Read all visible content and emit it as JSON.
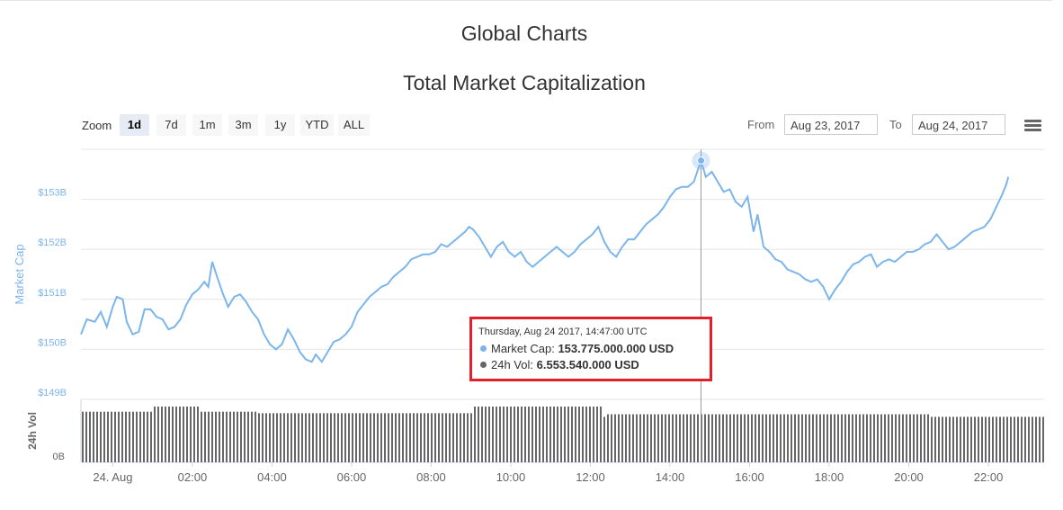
{
  "page": {
    "title": "Global Charts"
  },
  "toolbar": {
    "zoom_label": "Zoom",
    "zoom_buttons": [
      {
        "label": "1d",
        "active": true
      },
      {
        "label": "7d",
        "active": false
      },
      {
        "label": "1m",
        "active": false
      },
      {
        "label": "3m",
        "active": false
      },
      {
        "label": "1y",
        "active": false
      },
      {
        "label": "YTD",
        "active": false
      },
      {
        "label": "ALL",
        "active": false
      }
    ],
    "from_label": "From",
    "from_value": "Aug 23, 2017",
    "to_label": "To",
    "to_value": "Aug 24, 2017",
    "menu_icon": "hamburger-menu-icon"
  },
  "colors": {
    "market_cap": "#7cb5ec",
    "volume": "#666666",
    "tooltip_border": "#e0202a",
    "active_zoom": "#e6ebf5"
  },
  "tooltip": {
    "header": "Thursday, Aug 24 2017, 14:47:00 UTC",
    "market_cap_label": "Market Cap:",
    "market_cap_value": "153.775.000.000 USD",
    "volume_label": "24h Vol:",
    "volume_value": "6.553.540.000 USD"
  },
  "chart_data": {
    "type": "line",
    "title": "Total Market Capitalization",
    "y_axis": {
      "label": "Market Cap",
      "ticks": [
        "$149B",
        "$150B",
        "$151B",
        "$152B",
        "$153B"
      ],
      "range": [
        149,
        154
      ]
    },
    "volume_axis": {
      "label": "24h Vol",
      "ticks": [
        "0B"
      ]
    },
    "x_axis": {
      "ticks": [
        "24. Aug",
        "02:00",
        "04:00",
        "06:00",
        "08:00",
        "10:00",
        "12:00",
        "14:00",
        "16:00",
        "18:00",
        "20:00",
        "22:00"
      ],
      "range_hours": [
        -0.8,
        23.4
      ]
    },
    "series": [
      {
        "name": "Market Cap",
        "unit": "billion USD",
        "points": [
          [
            -0.8,
            150.3
          ],
          [
            -0.65,
            150.6
          ],
          [
            -0.45,
            150.55
          ],
          [
            -0.3,
            150.75
          ],
          [
            -0.15,
            150.45
          ],
          [
            0.0,
            150.85
          ],
          [
            0.1,
            151.05
          ],
          [
            0.25,
            151.0
          ],
          [
            0.35,
            150.55
          ],
          [
            0.5,
            150.3
          ],
          [
            0.65,
            150.35
          ],
          [
            0.8,
            150.8
          ],
          [
            0.95,
            150.8
          ],
          [
            1.1,
            150.65
          ],
          [
            1.25,
            150.6
          ],
          [
            1.4,
            150.4
          ],
          [
            1.55,
            150.45
          ],
          [
            1.7,
            150.6
          ],
          [
            1.85,
            150.9
          ],
          [
            2.0,
            151.1
          ],
          [
            2.15,
            151.2
          ],
          [
            2.3,
            151.35
          ],
          [
            2.4,
            151.25
          ],
          [
            2.5,
            151.75
          ],
          [
            2.6,
            151.5
          ],
          [
            2.75,
            151.15
          ],
          [
            2.9,
            150.85
          ],
          [
            3.05,
            151.05
          ],
          [
            3.2,
            151.1
          ],
          [
            3.35,
            150.95
          ],
          [
            3.5,
            150.75
          ],
          [
            3.65,
            150.6
          ],
          [
            3.8,
            150.3
          ],
          [
            3.95,
            150.1
          ],
          [
            4.1,
            150.0
          ],
          [
            4.25,
            150.1
          ],
          [
            4.4,
            150.4
          ],
          [
            4.55,
            150.2
          ],
          [
            4.7,
            149.95
          ],
          [
            4.85,
            149.8
          ],
          [
            5.0,
            149.75
          ],
          [
            5.1,
            149.9
          ],
          [
            5.25,
            149.75
          ],
          [
            5.4,
            149.95
          ],
          [
            5.55,
            150.15
          ],
          [
            5.7,
            150.2
          ],
          [
            5.85,
            150.3
          ],
          [
            6.0,
            150.45
          ],
          [
            6.15,
            150.75
          ],
          [
            6.3,
            150.9
          ],
          [
            6.45,
            151.05
          ],
          [
            6.6,
            151.15
          ],
          [
            6.75,
            151.25
          ],
          [
            6.9,
            151.3
          ],
          [
            7.05,
            151.45
          ],
          [
            7.2,
            151.55
          ],
          [
            7.35,
            151.65
          ],
          [
            7.5,
            151.8
          ],
          [
            7.65,
            151.85
          ],
          [
            7.8,
            151.9
          ],
          [
            7.95,
            151.9
          ],
          [
            8.1,
            151.95
          ],
          [
            8.25,
            152.1
          ],
          [
            8.4,
            152.05
          ],
          [
            8.55,
            152.15
          ],
          [
            8.7,
            152.25
          ],
          [
            8.85,
            152.35
          ],
          [
            8.95,
            152.45
          ],
          [
            9.05,
            152.4
          ],
          [
            9.2,
            152.25
          ],
          [
            9.35,
            152.05
          ],
          [
            9.5,
            151.85
          ],
          [
            9.65,
            152.05
          ],
          [
            9.8,
            152.15
          ],
          [
            9.95,
            151.95
          ],
          [
            10.1,
            151.85
          ],
          [
            10.25,
            151.95
          ],
          [
            10.4,
            151.75
          ],
          [
            10.55,
            151.65
          ],
          [
            10.7,
            151.75
          ],
          [
            10.85,
            151.85
          ],
          [
            11.0,
            151.95
          ],
          [
            11.15,
            152.05
          ],
          [
            11.3,
            151.95
          ],
          [
            11.45,
            151.85
          ],
          [
            11.6,
            151.95
          ],
          [
            11.75,
            152.1
          ],
          [
            11.9,
            152.2
          ],
          [
            12.05,
            152.3
          ],
          [
            12.2,
            152.45
          ],
          [
            12.35,
            152.15
          ],
          [
            12.5,
            151.95
          ],
          [
            12.65,
            151.85
          ],
          [
            12.8,
            152.05
          ],
          [
            12.95,
            152.2
          ],
          [
            13.1,
            152.2
          ],
          [
            13.25,
            152.35
          ],
          [
            13.4,
            152.5
          ],
          [
            13.55,
            152.6
          ],
          [
            13.7,
            152.7
          ],
          [
            13.85,
            152.85
          ],
          [
            14.0,
            153.05
          ],
          [
            14.15,
            153.2
          ],
          [
            14.3,
            153.25
          ],
          [
            14.45,
            153.25
          ],
          [
            14.6,
            153.35
          ],
          [
            14.78,
            153.775
          ],
          [
            14.9,
            153.45
          ],
          [
            15.05,
            153.55
          ],
          [
            15.2,
            153.35
          ],
          [
            15.35,
            153.15
          ],
          [
            15.5,
            153.2
          ],
          [
            15.65,
            152.95
          ],
          [
            15.8,
            152.85
          ],
          [
            15.95,
            153.05
          ],
          [
            16.1,
            152.35
          ],
          [
            16.2,
            152.7
          ],
          [
            16.35,
            152.05
          ],
          [
            16.5,
            151.95
          ],
          [
            16.65,
            151.8
          ],
          [
            16.8,
            151.75
          ],
          [
            16.95,
            151.6
          ],
          [
            17.1,
            151.55
          ],
          [
            17.25,
            151.5
          ],
          [
            17.4,
            151.4
          ],
          [
            17.55,
            151.35
          ],
          [
            17.7,
            151.4
          ],
          [
            17.85,
            151.25
          ],
          [
            18.0,
            151.0
          ],
          [
            18.15,
            151.2
          ],
          [
            18.3,
            151.35
          ],
          [
            18.45,
            151.55
          ],
          [
            18.6,
            151.7
          ],
          [
            18.75,
            151.75
          ],
          [
            18.9,
            151.85
          ],
          [
            19.05,
            151.9
          ],
          [
            19.2,
            151.65
          ],
          [
            19.35,
            151.75
          ],
          [
            19.5,
            151.8
          ],
          [
            19.65,
            151.75
          ],
          [
            19.8,
            151.85
          ],
          [
            19.95,
            151.95
          ],
          [
            20.1,
            151.95
          ],
          [
            20.25,
            152.0
          ],
          [
            20.4,
            152.1
          ],
          [
            20.55,
            152.15
          ],
          [
            20.7,
            152.3
          ],
          [
            20.85,
            152.15
          ],
          [
            21.0,
            152.0
          ],
          [
            21.15,
            152.05
          ],
          [
            21.3,
            152.15
          ],
          [
            21.45,
            152.25
          ],
          [
            21.6,
            152.35
          ],
          [
            21.75,
            152.4
          ],
          [
            21.9,
            152.45
          ],
          [
            22.05,
            152.6
          ],
          [
            22.2,
            152.85
          ],
          [
            22.35,
            153.1
          ],
          [
            22.45,
            153.3
          ],
          [
            22.5,
            153.45
          ]
        ]
      },
      {
        "name": "24h Vol",
        "unit": "billion USD",
        "segments": [
          {
            "from": -0.8,
            "to": 1.0,
            "value": 6.9
          },
          {
            "from": 1.0,
            "to": 2.2,
            "value": 7.6
          },
          {
            "from": 2.2,
            "to": 3.6,
            "value": 6.9
          },
          {
            "from": 3.6,
            "to": 9.0,
            "value": 6.7
          },
          {
            "from": 9.0,
            "to": 12.25,
            "value": 7.6
          },
          {
            "from": 12.25,
            "to": 12.35,
            "value": 6.2
          },
          {
            "from": 12.35,
            "to": 14.78,
            "value": 6.55
          },
          {
            "from": 14.78,
            "to": 20.5,
            "value": 6.55
          },
          {
            "from": 20.5,
            "to": 23.4,
            "value": 6.2
          }
        ]
      }
    ],
    "highlight": {
      "x": 14.78,
      "y": 153.775
    }
  }
}
